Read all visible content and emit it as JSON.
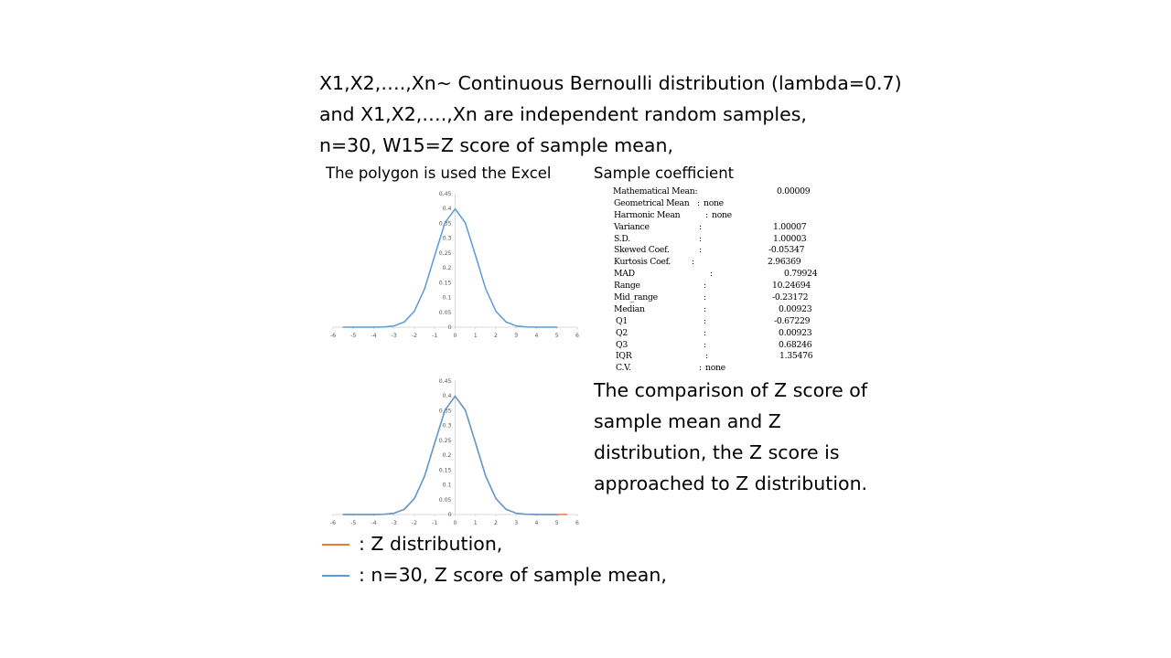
{
  "header": {
    "line1": "X1,X2,….,Xn~ Continuous Bernoulli distribution (lambda=0.7)",
    "line2": "and X1,X2,….,Xn are independent random samples,",
    "line3": "n=30, W15=Z score of sample mean,"
  },
  "caption_left": "The polygon is used the Excel",
  "caption_right": "Sample coefficient",
  "stats": [
    {
      "label": "Mathematical Mean:",
      "sep": "",
      "value": "0.00009"
    },
    {
      "label": "Geometrical Mean",
      "sep": ":",
      "value": "none"
    },
    {
      "label": "Harmonic Mean",
      "sep": ":",
      "value": "none"
    },
    {
      "label": "Variance",
      "sep": ":",
      "value": "1.00007"
    },
    {
      "label": "S.D.",
      "sep": ":",
      "value": "1.00003"
    },
    {
      "label": "Skewed Coef.",
      "sep": ":",
      "value": "-0.05347"
    },
    {
      "label": "Kurtosis Coef.",
      "sep": ":",
      "value": "2.96369"
    },
    {
      "label": "MAD",
      "sep": ":",
      "value": "0.79924"
    },
    {
      "label": "Range",
      "sep": ":",
      "value": "10.24694"
    },
    {
      "label": "Mid_range",
      "sep": ":",
      "value": "-0.23172"
    },
    {
      "label": "Median",
      "sep": ":",
      "value": "0.00923"
    },
    {
      "label": "Q1",
      "sep": ":",
      "value": "-0.67229"
    },
    {
      "label": "Q2",
      "sep": ":",
      "value": "0.00923"
    },
    {
      "label": "Q3",
      "sep": ":",
      "value": "0.68246"
    },
    {
      "label": "IQR",
      "sep": ":",
      "value": "1.35476"
    },
    {
      "label": "C.V.",
      "sep": ":",
      "value": "none"
    }
  ],
  "compare": {
    "line1": "The comparison of Z score of",
    "line2": "sample mean and Z",
    "line3": "distribution, the Z score is",
    "line4": "approached to Z distribution."
  },
  "legend": [
    {
      "text": ": Z distribution,",
      "color": "#ed7d31"
    },
    {
      "text": ":   n=30, Z score of sample mean,",
      "color": "#5b9bd5"
    }
  ],
  "colors": {
    "z_distribution": "#ed7d31",
    "sample_mean": "#5b9bd5"
  },
  "chart_data": [
    {
      "type": "line",
      "title": "",
      "xlabel": "",
      "ylabel": "",
      "xlim": [
        -6,
        6
      ],
      "ylim": [
        0,
        0.45
      ],
      "x_ticks": [
        "-6",
        "-5",
        "-4",
        "-3",
        "-2",
        "-1",
        "0",
        "1",
        "2",
        "3",
        "4",
        "5",
        "6"
      ],
      "y_ticks": [
        "0",
        "0.05",
        "0.1",
        "0.15",
        "0.2",
        "0.25",
        "0.3",
        "0.35",
        "0.4",
        "0.45"
      ],
      "series": [
        {
          "color": "#5b9bd5",
          "x": [
            -5.5,
            -5,
            -4.5,
            -4,
            -3.5,
            -3,
            -2.5,
            -2,
            -1.5,
            -1,
            -0.5,
            0,
            0.5,
            1,
            1.5,
            2,
            2.5,
            3,
            3.5,
            4,
            4.5,
            5
          ],
          "y": [
            0,
            0,
            0,
            0.0001,
            0.0009,
            0.0044,
            0.0175,
            0.054,
            0.1295,
            0.242,
            0.352,
            0.399,
            0.352,
            0.242,
            0.1295,
            0.054,
            0.0175,
            0.0044,
            0.0009,
            0.0001,
            0,
            0
          ]
        }
      ]
    },
    {
      "type": "line",
      "title": "",
      "xlabel": "",
      "ylabel": "",
      "xlim": [
        -6,
        6
      ],
      "ylim": [
        0,
        0.45
      ],
      "x_ticks": [
        "-6",
        "-5",
        "-4",
        "-3",
        "-2",
        "-1",
        "0",
        "1",
        "2",
        "3",
        "4",
        "5",
        "6"
      ],
      "y_ticks": [
        "0",
        "0.05",
        "0.1",
        "0.15",
        "0.2",
        "0.25",
        "0.3",
        "0.35",
        "0.4",
        "0.45"
      ],
      "series": [
        {
          "color": "#ed7d31",
          "x": [
            -5.5,
            -5,
            -4.5,
            -4,
            -3.5,
            -3,
            -2.5,
            -2,
            -1.5,
            -1,
            -0.5,
            0,
            0.5,
            1,
            1.5,
            2,
            2.5,
            3,
            3.5,
            4,
            4.5,
            5,
            5.5
          ],
          "y": [
            0,
            0,
            0,
            0.0001,
            0.0009,
            0.0044,
            0.0175,
            0.054,
            0.1295,
            0.242,
            0.352,
            0.399,
            0.352,
            0.242,
            0.1295,
            0.054,
            0.0175,
            0.0044,
            0.0009,
            0.0001,
            0,
            0,
            0
          ]
        },
        {
          "color": "#5b9bd5",
          "x": [
            -5.5,
            -5,
            -4.5,
            -4,
            -3.5,
            -3,
            -2.5,
            -2,
            -1.5,
            -1,
            -0.5,
            0,
            0.5,
            1,
            1.5,
            2,
            2.5,
            3,
            3.5,
            4,
            4.5,
            5
          ],
          "y": [
            0,
            0,
            0,
            0.0001,
            0.0009,
            0.0044,
            0.0175,
            0.054,
            0.1295,
            0.242,
            0.352,
            0.399,
            0.352,
            0.242,
            0.1295,
            0.054,
            0.0175,
            0.0044,
            0.0009,
            0.0001,
            0,
            0
          ]
        }
      ]
    }
  ]
}
